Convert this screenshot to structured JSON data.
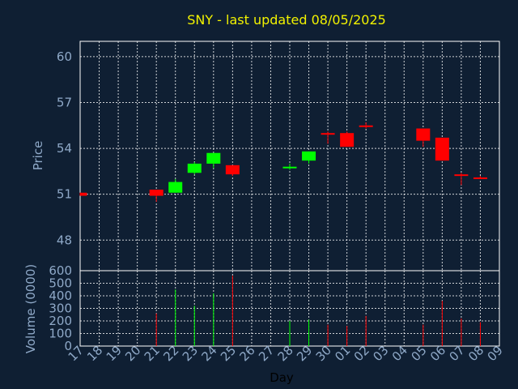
{
  "chart_data": {
    "type": "candlestick",
    "title": "SNY - last updated 08/05/2025",
    "xlabel": "Day",
    "ylabel_price": "Price",
    "ylabel_volume": "Volume (0000)",
    "x_ticks": [
      "17",
      "18",
      "19",
      "20",
      "21",
      "22",
      "23",
      "24",
      "25",
      "26",
      "27",
      "28",
      "29",
      "30",
      "01",
      "02",
      "03",
      "04",
      "05",
      "06",
      "07",
      "08",
      "09"
    ],
    "price_ylim": [
      46,
      61
    ],
    "price_yticks": [
      48,
      51,
      54,
      57,
      60
    ],
    "volume_ylim": [
      0,
      600
    ],
    "volume_yticks": [
      0,
      100,
      200,
      300,
      400,
      500,
      600
    ],
    "colors": {
      "up": "#00ff00",
      "down": "#ff0000",
      "background": "#0f1f33",
      "grid": "#ffffff",
      "text": "#8fa9c8",
      "title": "#f2f200"
    },
    "candles": [
      {
        "day": "17",
        "open": 51.1,
        "close": 50.9,
        "high": 51.1,
        "low": 50.9,
        "volume": 0
      },
      {
        "day": "21",
        "open": 51.3,
        "close": 50.9,
        "high": 51.3,
        "low": 50.5,
        "volume": 260
      },
      {
        "day": "22",
        "open": 51.1,
        "close": 51.8,
        "high": 52.0,
        "low": 51.1,
        "volume": 450
      },
      {
        "day": "23",
        "open": 52.4,
        "close": 53.0,
        "high": 53.1,
        "low": 52.3,
        "volume": 320
      },
      {
        "day": "24",
        "open": 53.0,
        "close": 53.7,
        "high": 53.7,
        "low": 52.7,
        "volume": 420
      },
      {
        "day": "25",
        "open": 52.9,
        "close": 52.3,
        "high": 52.9,
        "low": 52.2,
        "volume": 560
      },
      {
        "day": "28",
        "open": 52.7,
        "close": 52.8,
        "high": 53.0,
        "low": 52.6,
        "volume": 200
      },
      {
        "day": "29",
        "open": 53.2,
        "close": 53.8,
        "high": 53.8,
        "low": 53.0,
        "volume": 210
      },
      {
        "day": "30",
        "open": 55.0,
        "close": 54.9,
        "high": 55.1,
        "low": 54.3,
        "volume": 170
      },
      {
        "day": "01",
        "open": 55.0,
        "close": 54.1,
        "high": 55.1,
        "low": 54.1,
        "volume": 160
      },
      {
        "day": "02",
        "open": 55.5,
        "close": 55.4,
        "high": 55.7,
        "low": 55.3,
        "volume": 240
      },
      {
        "day": "05",
        "open": 55.3,
        "close": 54.5,
        "high": 55.3,
        "low": 54.1,
        "volume": 170
      },
      {
        "day": "06",
        "open": 54.7,
        "close": 53.2,
        "high": 54.7,
        "low": 53.2,
        "volume": 360
      },
      {
        "day": "07",
        "open": 52.3,
        "close": 52.2,
        "high": 52.4,
        "low": 51.6,
        "volume": 220
      },
      {
        "day": "08",
        "open": 52.1,
        "close": 52.0,
        "high": 52.2,
        "low": 52.0,
        "volume": 190
      }
    ]
  }
}
